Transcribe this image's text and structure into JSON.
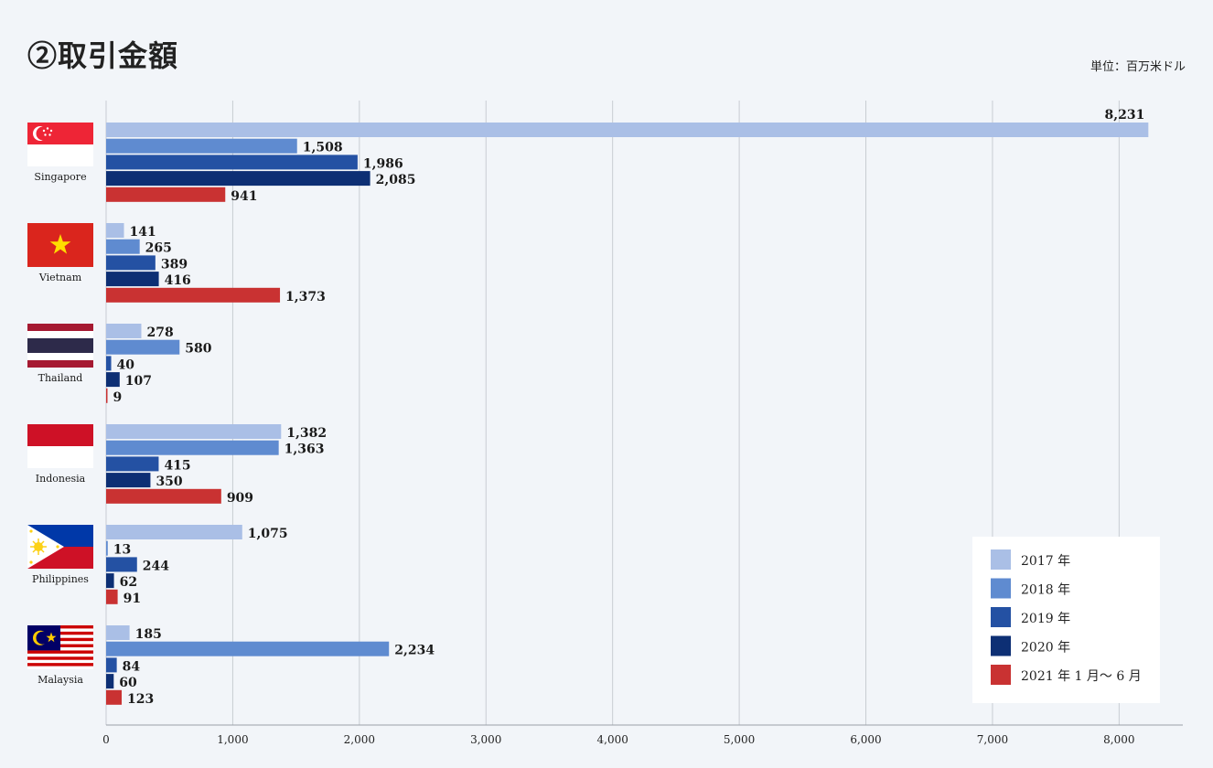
{
  "title": "②取引金額",
  "unit": "単位：百万米ドル",
  "colors": {
    "s2017": "#aabfe6",
    "s2018": "#5f8bd0",
    "s2019": "#2451a3",
    "s2020": "#0d2f74",
    "s2021": "#c93232"
  },
  "chart_data": {
    "type": "bar",
    "orientation": "horizontal",
    "title": "②取引金額",
    "unit": "単位：百万米ドル",
    "categories": [
      "Singapore",
      "Vietnam",
      "Thailand",
      "Indonesia",
      "Philippines",
      "Malaysia"
    ],
    "category_icons": [
      "singapore-flag-icon",
      "vietnam-flag-icon",
      "thailand-flag-icon",
      "indonesia-flag-icon",
      "philippines-flag-icon",
      "malaysia-flag-icon"
    ],
    "series": [
      {
        "name": "2017 年",
        "color": "#aabfe6",
        "values": [
          8231,
          141,
          278,
          1382,
          1075,
          185
        ]
      },
      {
        "name": "2018 年",
        "color": "#5f8bd0",
        "values": [
          1508,
          265,
          580,
          1363,
          13,
          2234
        ]
      },
      {
        "name": "2019 年",
        "color": "#2451a3",
        "values": [
          1986,
          389,
          40,
          415,
          244,
          84
        ]
      },
      {
        "name": "2020 年",
        "color": "#0d2f74",
        "values": [
          2085,
          416,
          107,
          350,
          62,
          60
        ]
      },
      {
        "name": "2021 年 1 月～ 6 月",
        "color": "#c93232",
        "values": [
          941,
          1373,
          9,
          909,
          91,
          123
        ]
      }
    ],
    "xlim": [
      0,
      8500
    ],
    "xticks": [
      0,
      1000,
      2000,
      3000,
      4000,
      5000,
      6000,
      7000,
      8000
    ],
    "xtick_labels": [
      "0",
      "1,000",
      "2,000",
      "3,000",
      "4,000",
      "5,000",
      "6,000",
      "7,000",
      "8,000"
    ],
    "grid": true,
    "legend_position": "bottom-right",
    "xlabel": "",
    "ylabel": ""
  }
}
